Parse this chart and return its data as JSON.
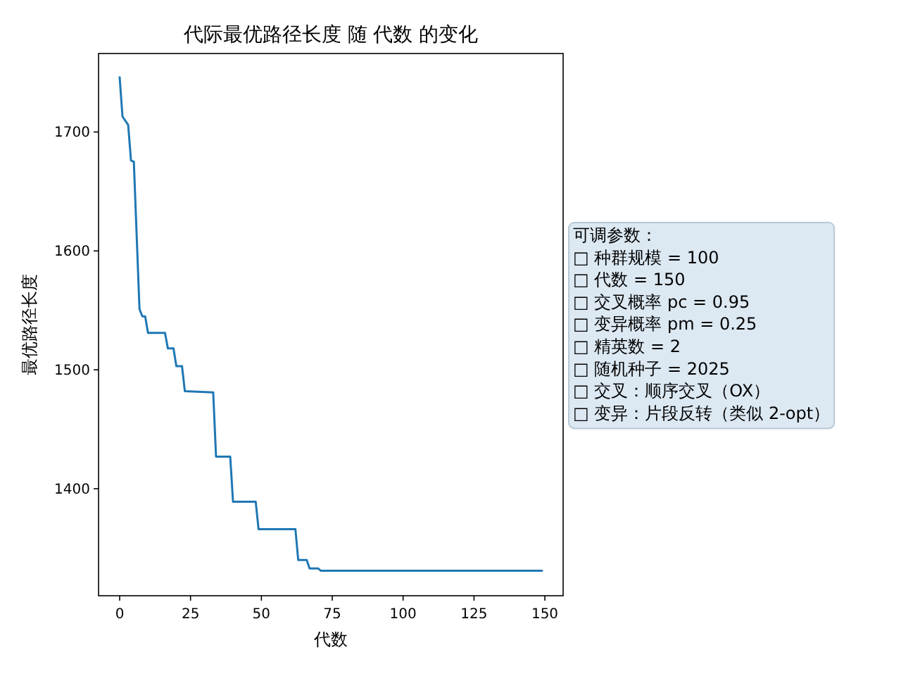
{
  "chart_data": {
    "type": "line",
    "title": "代际最优路径长度 随 代数 的变化",
    "xlabel": "代数",
    "ylabel": "最优路径长度",
    "series": [
      {
        "color": "#1f77b4",
        "x": [
          0,
          1,
          3,
          4,
          5,
          7,
          8,
          9,
          10,
          16,
          17,
          19,
          20,
          22,
          23,
          33,
          34,
          39,
          40,
          48,
          49,
          62,
          63,
          66,
          67,
          70,
          71,
          149
        ],
        "values": [
          1746,
          1713,
          1706,
          1676,
          1675,
          1551,
          1545,
          1545,
          1531,
          1531,
          1518,
          1518,
          1503,
          1503,
          1482,
          1481,
          1427,
          1427,
          1389,
          1389,
          1366,
          1366,
          1340,
          1340,
          1333,
          1333,
          1331,
          1331
        ]
      }
    ],
    "xlim": [
      -7.45,
      156.45
    ],
    "ylim": [
      1310,
      1766
    ],
    "xticks": [
      0,
      25,
      50,
      75,
      100,
      125,
      150
    ],
    "yticks": [
      1400,
      1500,
      1600,
      1700
    ],
    "grid": false,
    "marker": "none",
    "line_style": "solid",
    "annotations": [
      "可调参数：\n□ 种群规模 = 100\n□ 代数 = 150\n□ 交叉概率 pc = 0.95\n□ 变异概率 pm = 0.25\n□ 精英数 = 2\n□ 随机种子 = 2025\n□ 交叉：顺序交叉（OX）\n□ 变异：片段反转（类似 2-opt）"
    ]
  }
}
